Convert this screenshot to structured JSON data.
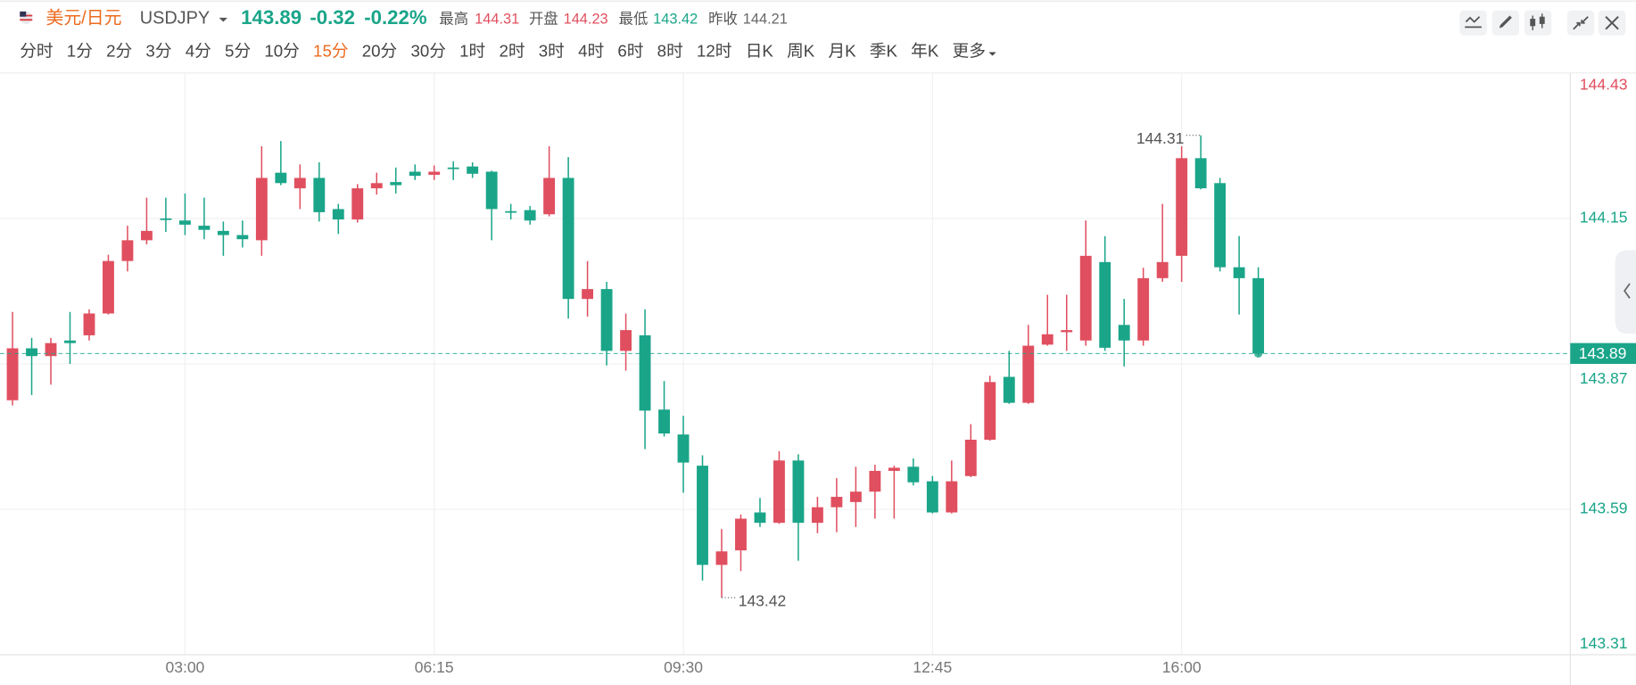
{
  "header": {
    "symbol_name": "美元/日元",
    "symbol": "USDJPY",
    "last": "143.89",
    "change": "-0.32",
    "change_pct": "-0.22%",
    "stats": [
      {
        "label": "最高",
        "value": "144.31"
      },
      {
        "label": "开盘",
        "value": "144.23"
      },
      {
        "label": "最低",
        "value": "143.42"
      },
      {
        "label": "昨收",
        "value": "144.21"
      }
    ],
    "timeframes": [
      "分时",
      "1分",
      "2分",
      "3分",
      "4分",
      "5分",
      "10分",
      "15分",
      "20分",
      "30分",
      "1时",
      "2时",
      "3时",
      "4时",
      "6时",
      "8时",
      "12时",
      "日K",
      "周K",
      "月K",
      "季K",
      "年K",
      "更多"
    ]
  },
  "chart_data": {
    "type": "candlestick",
    "up_color": "#e04f5f",
    "down_color": "#1aa589",
    "prev_close": 144.21,
    "last_price": 143.89,
    "grid": true,
    "ylim": [
      143.31,
      144.43
    ],
    "yticks": [
      143.31,
      143.59,
      143.87,
      144.15,
      144.43
    ],
    "categories": [
      null,
      null,
      null,
      null,
      null,
      null,
      null,
      null,
      null,
      "03:00",
      null,
      null,
      null,
      null,
      null,
      null,
      null,
      null,
      null,
      null,
      null,
      null,
      "06:15",
      null,
      null,
      null,
      null,
      null,
      null,
      null,
      null,
      null,
      null,
      null,
      null,
      "09:30",
      null,
      null,
      null,
      null,
      null,
      null,
      null,
      null,
      null,
      null,
      null,
      null,
      "12:45",
      null,
      null,
      null,
      null,
      null,
      null,
      null,
      null,
      null,
      null,
      null,
      null,
      "16:00",
      null,
      null,
      null,
      null
    ],
    "open": [
      143.8,
      143.9,
      143.885,
      143.915,
      143.925,
      143.967,
      144.068,
      144.108,
      144.15,
      144.146,
      144.136,
      144.126,
      144.118,
      144.108,
      144.238,
      144.208,
      144.228,
      144.168,
      144.148,
      144.208,
      144.22,
      144.24,
      144.234,
      144.248,
      144.25,
      144.24,
      144.164,
      144.166,
      144.158,
      144.228,
      143.995,
      144.014,
      143.895,
      143.925,
      143.782,
      143.734,
      143.674,
      143.483,
      143.511,
      143.584,
      143.564,
      143.684,
      143.564,
      143.594,
      143.604,
      143.624,
      143.664,
      143.672,
      143.644,
      143.584,
      143.654,
      143.724,
      143.845,
      143.795,
      143.907,
      143.931,
      143.915,
      144.066,
      143.945,
      143.915,
      144.035,
      144.078,
      144.266,
      144.218,
      144.056,
      144.035
    ],
    "high": [
      143.97,
      143.92,
      143.92,
      143.97,
      143.975,
      144.08,
      144.136,
      144.19,
      144.19,
      144.198,
      144.19,
      144.144,
      144.146,
      144.289,
      144.299,
      144.254,
      144.258,
      144.178,
      144.216,
      144.238,
      144.248,
      144.254,
      144.252,
      144.26,
      144.258,
      144.242,
      144.178,
      144.174,
      144.289,
      144.268,
      144.068,
      144.028,
      143.967,
      143.975,
      143.837,
      143.77,
      143.694,
      143.552,
      143.58,
      143.612,
      143.702,
      143.696,
      143.614,
      143.65,
      143.672,
      143.676,
      143.674,
      143.688,
      143.654,
      143.684,
      143.754,
      143.847,
      143.895,
      143.945,
      144.003,
      144.003,
      144.146,
      144.116,
      143.995,
      144.055,
      144.178,
      144.289,
      144.31,
      144.228,
      144.116,
      144.056
    ],
    "low": [
      143.79,
      143.81,
      143.83,
      143.87,
      143.915,
      143.965,
      144.048,
      144.1,
      144.124,
      144.118,
      144.11,
      144.078,
      144.094,
      144.078,
      144.214,
      144.168,
      144.144,
      144.12,
      144.142,
      144.196,
      144.198,
      144.224,
      144.224,
      144.224,
      144.228,
      144.108,
      144.148,
      144.138,
      144.154,
      143.957,
      143.961,
      143.867,
      143.857,
      143.706,
      143.73,
      143.622,
      143.453,
      143.42,
      143.471,
      143.556,
      143.562,
      143.491,
      143.544,
      143.546,
      143.556,
      143.572,
      143.572,
      143.636,
      143.582,
      143.582,
      143.652,
      143.722,
      143.793,
      143.793,
      143.905,
      143.895,
      143.905,
      143.895,
      143.865,
      143.905,
      144.028,
      144.028,
      144.206,
      144.048,
      143.965,
      143.885
    ],
    "close": [
      143.9,
      143.885,
      143.91,
      143.91,
      143.967,
      144.068,
      144.108,
      144.126,
      144.148,
      144.138,
      144.128,
      144.118,
      144.11,
      144.228,
      144.218,
      144.228,
      144.162,
      144.148,
      144.208,
      144.218,
      144.214,
      144.232,
      144.24,
      144.246,
      144.236,
      144.168,
      144.162,
      144.146,
      144.228,
      143.995,
      144.014,
      143.895,
      143.935,
      143.78,
      143.736,
      143.68,
      143.483,
      143.509,
      143.572,
      143.564,
      143.684,
      143.564,
      143.594,
      143.614,
      143.624,
      143.664,
      143.67,
      143.642,
      143.584,
      143.644,
      143.724,
      143.835,
      143.795,
      143.905,
      143.927,
      143.935,
      144.078,
      143.901,
      143.915,
      144.035,
      144.066,
      144.266,
      144.208,
      144.056,
      144.035,
      143.89
    ]
  }
}
